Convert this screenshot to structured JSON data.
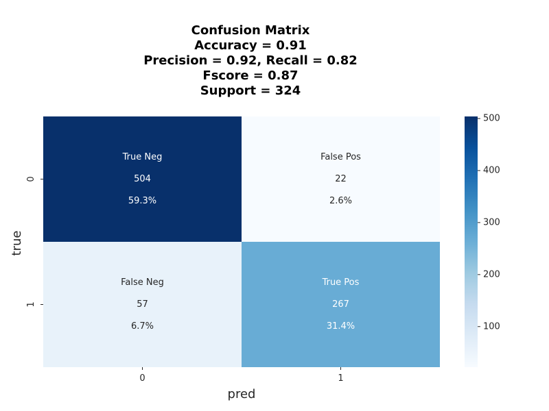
{
  "title_lines": [
    "Confusion Matrix",
    "Accuracy = 0.91",
    "Precision = 0.92, Recall = 0.82",
    "Fscore = 0.87",
    "Support = 324"
  ],
  "chart_data": {
    "type": "heatmap",
    "xlabel": "pred",
    "ylabel": "true",
    "x_categories": [
      "0",
      "1"
    ],
    "y_categories": [
      "0",
      "1"
    ],
    "cells": [
      [
        {
          "name": "True Neg",
          "count": "504",
          "percent": "59.3%",
          "value": 504
        },
        {
          "name": "False Pos",
          "count": "22",
          "percent": "2.6%",
          "value": 22
        }
      ],
      [
        {
          "name": "False Neg",
          "count": "57",
          "percent": "6.7%",
          "value": 57
        },
        {
          "name": "True Pos",
          "count": "267",
          "percent": "31.4%",
          "value": 267
        }
      ]
    ],
    "colormap": "Blues",
    "colorbar": {
      "min": 22,
      "max": 504,
      "ticks": [
        100,
        200,
        300,
        400,
        500
      ]
    },
    "colors": {
      "low": "#f7fbff",
      "high": "#08306b"
    }
  }
}
